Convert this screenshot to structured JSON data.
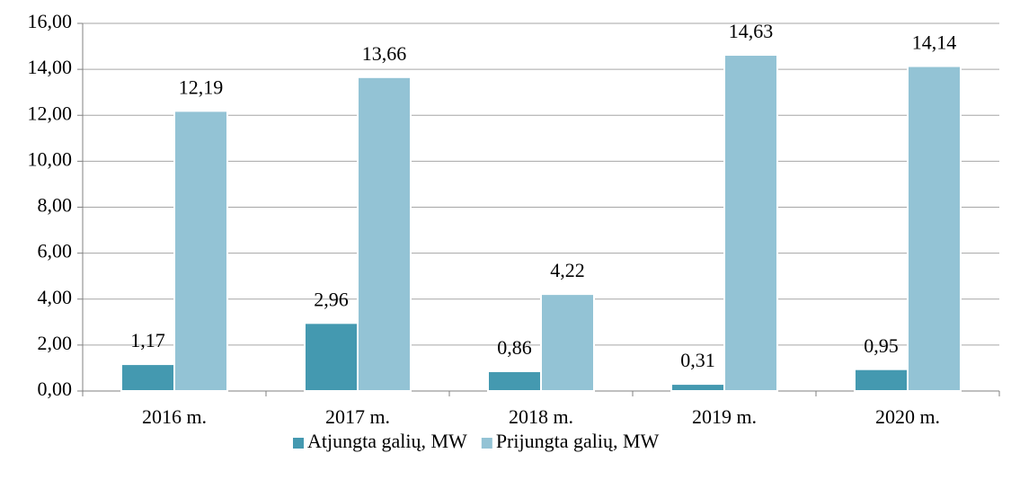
{
  "chart_data": {
    "type": "bar",
    "categories": [
      "2016 m.",
      "2017 m.",
      "2018 m.",
      "2019 m.",
      "2020 m."
    ],
    "series": [
      {
        "name": "Atjungta galių, MW",
        "color": "#4499b0",
        "values": [
          1.17,
          2.96,
          0.86,
          0.31,
          0.95
        ],
        "value_labels": [
          "1,17",
          "2,96",
          "0,86",
          "0,31",
          "0,95"
        ]
      },
      {
        "name": "Prijungta galių, MW",
        "color": "#93c3d5",
        "values": [
          12.19,
          13.66,
          4.22,
          14.63,
          14.14
        ],
        "value_labels": [
          "12,19",
          "13,66",
          "4,22",
          "14,63",
          "14,14"
        ]
      }
    ],
    "ylim": [
      0,
      16
    ],
    "yticks": [
      {
        "value": 0,
        "label": "0,00"
      },
      {
        "value": 2,
        "label": "2,00"
      },
      {
        "value": 4,
        "label": "4,00"
      },
      {
        "value": 6,
        "label": "6,00"
      },
      {
        "value": 8,
        "label": "8,00"
      },
      {
        "value": 10,
        "label": "10,00"
      },
      {
        "value": 12,
        "label": "12,00"
      },
      {
        "value": 14,
        "label": "14,00"
      },
      {
        "value": 16,
        "label": "16,00"
      }
    ],
    "grid": true,
    "legend": "bottom"
  }
}
